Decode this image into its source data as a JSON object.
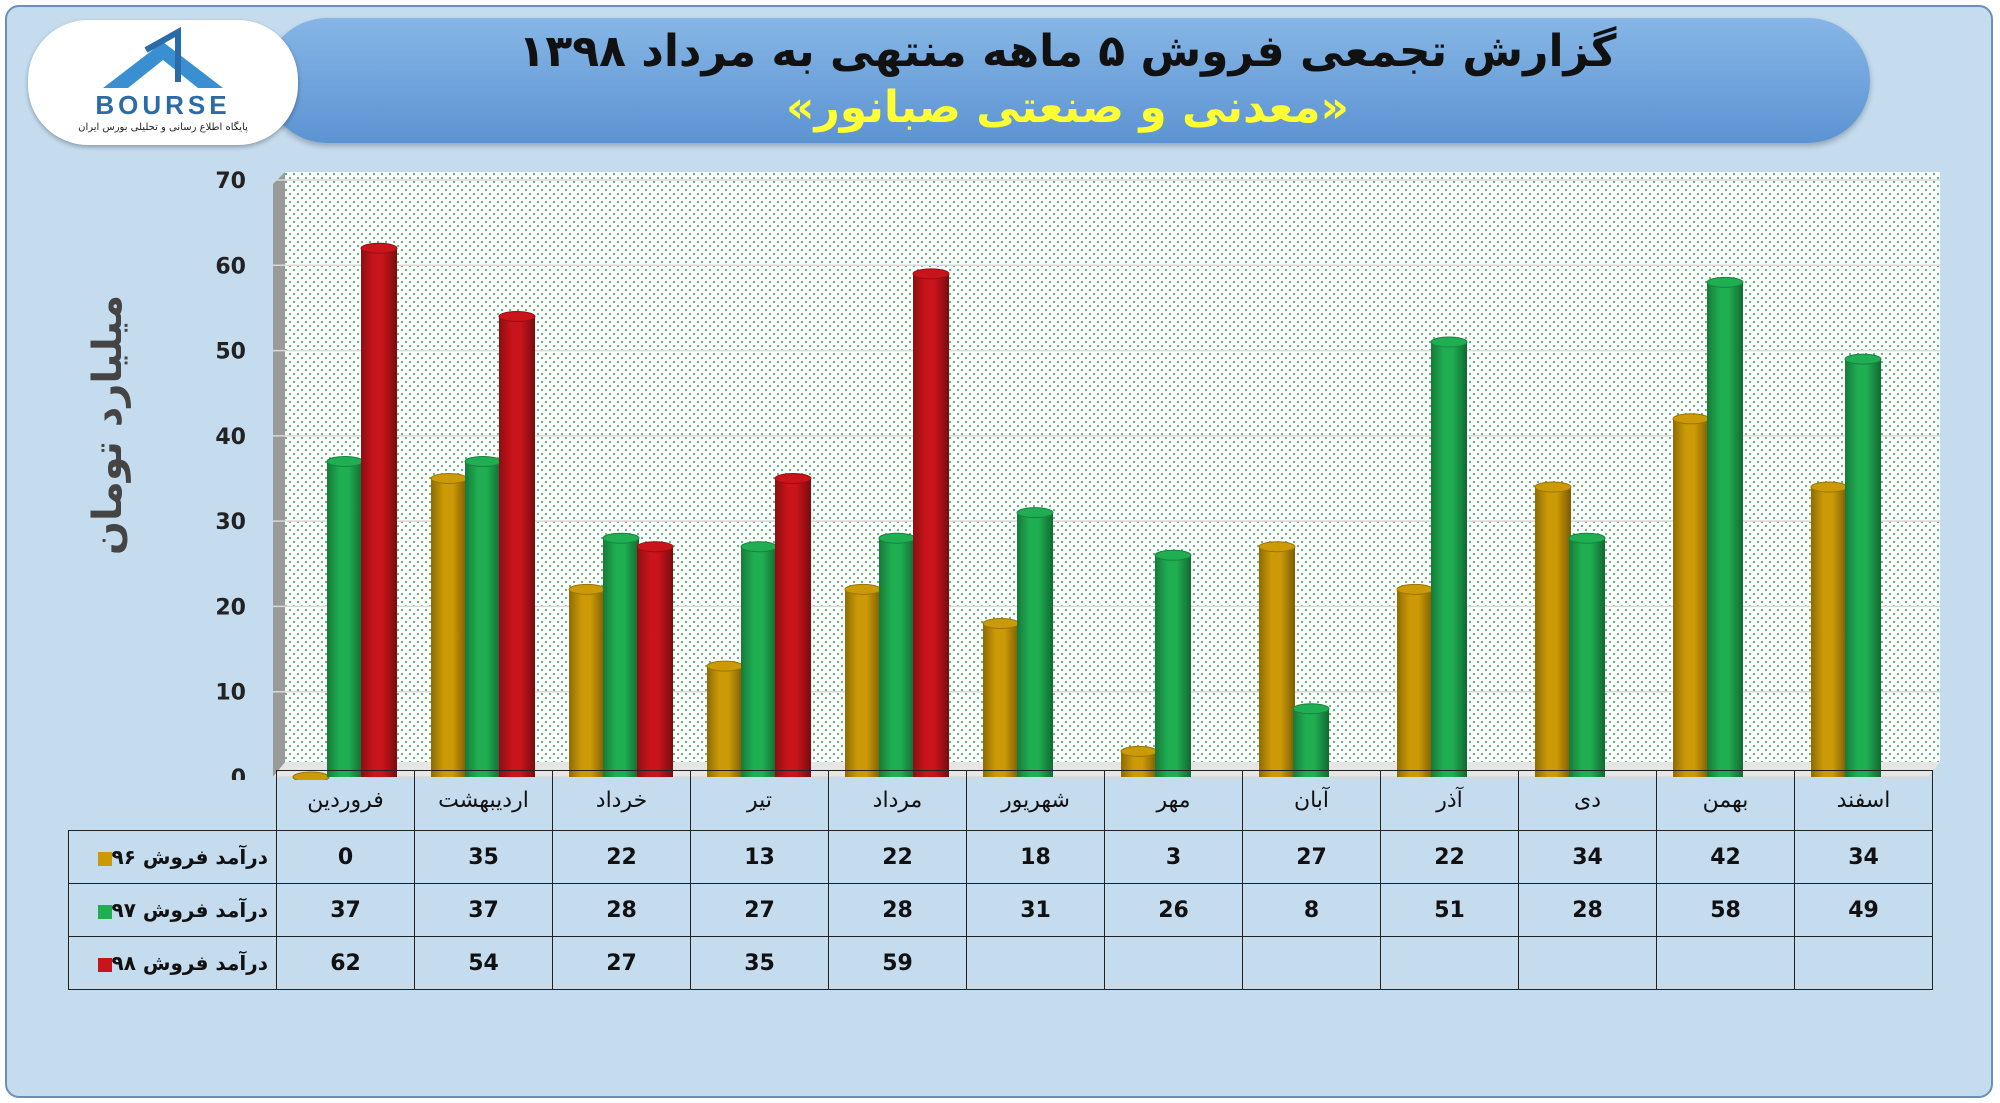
{
  "header": {
    "title": "گزارش تجمعی فروش ۵ ماهه منتهی به مرداد ۱۳۹۸",
    "subtitle": "«معدنی و صنعتی صبانور»"
  },
  "logo": {
    "text": "BOURSE",
    "caption": "پایگاه اطلاع رسانی و تحلیلی بورس ایران"
  },
  "colors": {
    "s96": "#cc9a06",
    "s97": "#1fae52",
    "s98": "#c8141a",
    "background": "#c5dcef"
  },
  "chart_data": {
    "type": "bar",
    "ylabel": "میلیارد تومان",
    "ylim": [
      0,
      70
    ],
    "yticks": [
      0,
      10,
      20,
      30,
      40,
      50,
      60,
      70
    ],
    "grid": true,
    "categories": [
      "فروردین",
      "اردیبهشت",
      "خرداد",
      "تیر",
      "مرداد",
      "شهریور",
      "مهر",
      "آبان",
      "آذر",
      "دی",
      "بهمن",
      "اسفند"
    ],
    "series": [
      {
        "name": "درآمد فروش ۹۶",
        "color": "#cc9a06",
        "values": [
          0,
          35,
          22,
          13,
          22,
          18,
          3,
          27,
          22,
          34,
          42,
          34
        ]
      },
      {
        "name": "درآمد فروش ۹۷",
        "color": "#1fae52",
        "values": [
          37,
          37,
          28,
          27,
          28,
          31,
          26,
          8,
          51,
          28,
          58,
          49
        ]
      },
      {
        "name": "درآمد فروش ۹۸",
        "color": "#c8141a",
        "values": [
          62,
          54,
          27,
          35,
          59,
          null,
          null,
          null,
          null,
          null,
          null,
          null
        ]
      }
    ]
  }
}
